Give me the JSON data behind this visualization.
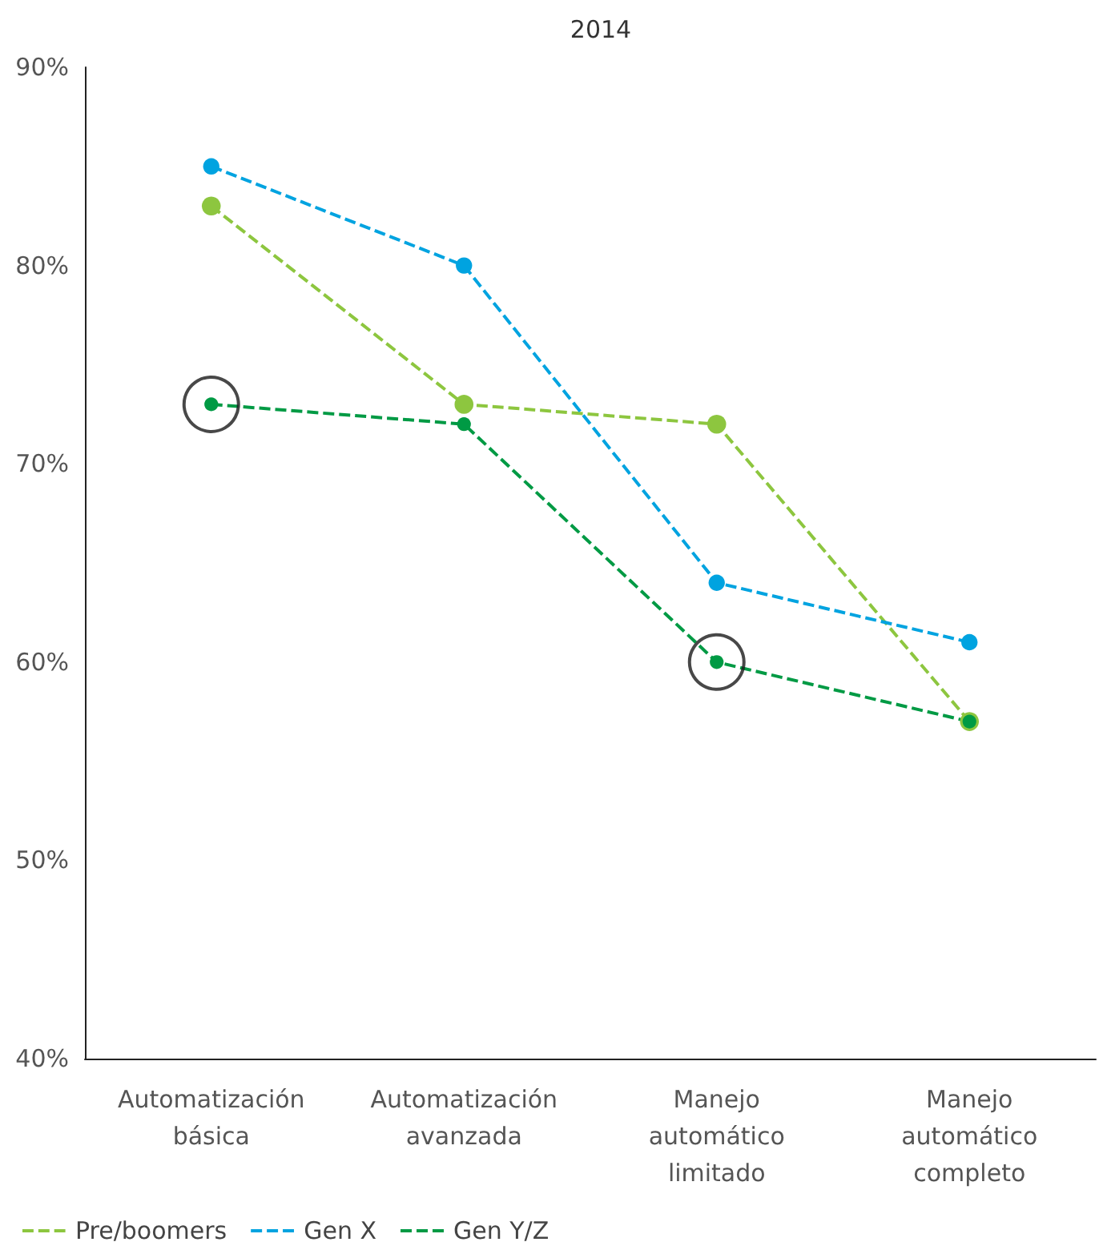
{
  "chart_data": {
    "type": "line",
    "title": "2014",
    "categories": [
      "Automatización\nbásica",
      "Automatización\navanzada",
      "Manejo\nautomático\nlimitado",
      "Manejo\nautomático\ncompleto"
    ],
    "series": [
      {
        "name": "Pre/boomers",
        "color": "#8dc63f",
        "values": [
          83,
          73,
          72,
          57
        ]
      },
      {
        "name": "Gen X",
        "color": "#00a3e0",
        "values": [
          85,
          80,
          64,
          61
        ]
      },
      {
        "name": "Gen Y/Z",
        "color": "#009a44",
        "values": [
          73,
          72,
          60,
          57
        ]
      },
      {
        "type": "scatter",
        "color": "#1a1a1a",
        "values": [
          73,
          null,
          60,
          null
        ]
      }
    ],
    "ylim": [
      40,
      90
    ],
    "yticks": [
      {
        "value": 40,
        "label": "40%"
      },
      {
        "value": 50,
        "label": "50%"
      },
      {
        "value": 60,
        "label": "60%"
      },
      {
        "value": 70,
        "label": "70%"
      },
      {
        "value": 80,
        "label": "80%"
      },
      {
        "value": 90,
        "label": "90%"
      }
    ],
    "grid": false,
    "legend": "bottom",
    "marker": "circle",
    "line_style": "dashed"
  }
}
